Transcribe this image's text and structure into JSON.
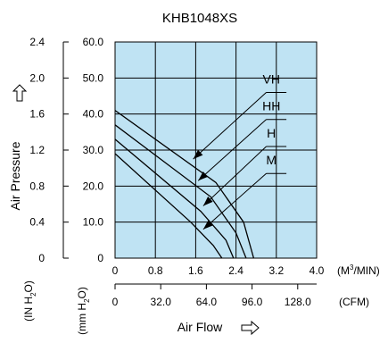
{
  "chart_data": {
    "type": "line",
    "title": "KHB1048XS",
    "xlabel": "Air Flow",
    "ylabel": "Air Pressure",
    "x_units": [
      "(M3/MIN)",
      "(CFM)"
    ],
    "y_units": [
      "(IN H2O)",
      "(mm H2O)"
    ],
    "xlim": [
      0,
      4.0
    ],
    "ylim": [
      0,
      60.0
    ],
    "x_ticks_m3min": [
      "0",
      "0.8",
      "1.6",
      "2.4",
      "3.2",
      "4.0"
    ],
    "x_ticks_cfm": [
      "0",
      "32.0",
      "64.0",
      "96.0",
      "128.0"
    ],
    "y_ticks_mmh2o": [
      "0",
      "10.0",
      "20.0",
      "30.0",
      "40.0",
      "50.0",
      "60.0"
    ],
    "y_ticks_inh2o": [
      "0",
      "0.4",
      "0.8",
      "1.2",
      "1.6",
      "2.0",
      "2.4"
    ],
    "grid": true,
    "background_color": "#bfe3f3",
    "line_color": "#000000",
    "series": [
      {
        "name": "VH",
        "x": [
          0,
          2.0,
          2.55,
          2.75
        ],
        "y": [
          41.0,
          21.0,
          10.0,
          0
        ],
        "label_x": 2.96,
        "label_y": 48.5
      },
      {
        "name": "HH",
        "x": [
          0,
          1.9,
          2.4,
          2.6
        ],
        "y": [
          37.0,
          17.0,
          7.0,
          0
        ],
        "label_x": 2.96,
        "label_y": 41.0
      },
      {
        "name": "H",
        "x": [
          0,
          1.7,
          2.2,
          2.35
        ],
        "y": [
          33.0,
          13.0,
          5.0,
          0
        ],
        "label_x": 2.96,
        "label_y": 33.5
      },
      {
        "name": "M",
        "x": [
          0,
          1.5,
          1.95,
          2.12
        ],
        "y": [
          29.0,
          10.0,
          3.5,
          0
        ],
        "label_x": 2.96,
        "label_y": 26.0
      }
    ],
    "annotations": [
      {
        "series": "VH",
        "from_x": 3.0,
        "from_y": 46.0,
        "to_x": 1.55,
        "to_y": 27.5
      },
      {
        "series": "HH",
        "from_x": 3.0,
        "from_y": 38.5,
        "to_x": 1.65,
        "to_y": 21.5
      },
      {
        "series": "H",
        "from_x": 3.0,
        "from_y": 31.0,
        "to_x": 1.75,
        "to_y": 14.5
      },
      {
        "series": "M",
        "from_x": 3.0,
        "from_y": 23.5,
        "to_x": 1.75,
        "to_y": 8.0
      }
    ]
  }
}
